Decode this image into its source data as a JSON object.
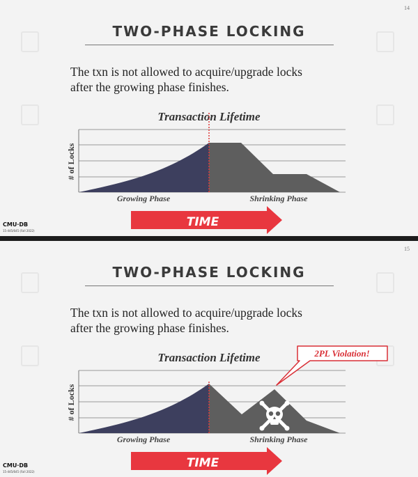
{
  "slides": [
    {
      "page_number": "14",
      "title": "TWO-PHASE LOCKING",
      "body": [
        "The txn is not allowed to acquire/upgrade locks",
        "after the growing phase finishes."
      ],
      "chart_title": "Transaction Lifetime",
      "y_label": "# of Locks",
      "growing_label": "Growing Phase",
      "shrinking_label": "Shrinking Phase",
      "time_label": "TIME",
      "brand": "CMU·DB",
      "brand_sub": "15-445/645 (Fall 2022)"
    },
    {
      "page_number": "15",
      "title": "TWO-PHASE LOCKING",
      "body": [
        "The txn is not allowed to acquire/upgrade locks",
        "after the growing phase finishes."
      ],
      "chart_title": "Transaction Lifetime",
      "y_label": "# of Locks",
      "growing_label": "Growing Phase",
      "shrinking_label": "Shrinking Phase",
      "time_label": "TIME",
      "violation_label": "2PL Violation!",
      "brand": "CMU·DB",
      "brand_sub": "15-445/645 (Fall 2022)"
    }
  ],
  "colors": {
    "growing": "#3d3f5e",
    "shrinking": "#5e5e5e",
    "phase_line": "#e03a3a",
    "arrow": "#e8373f",
    "callout_border": "#d92f36",
    "callout_text": "#d92f36"
  },
  "icons": {
    "violation": "skull-crossbones-icon"
  }
}
